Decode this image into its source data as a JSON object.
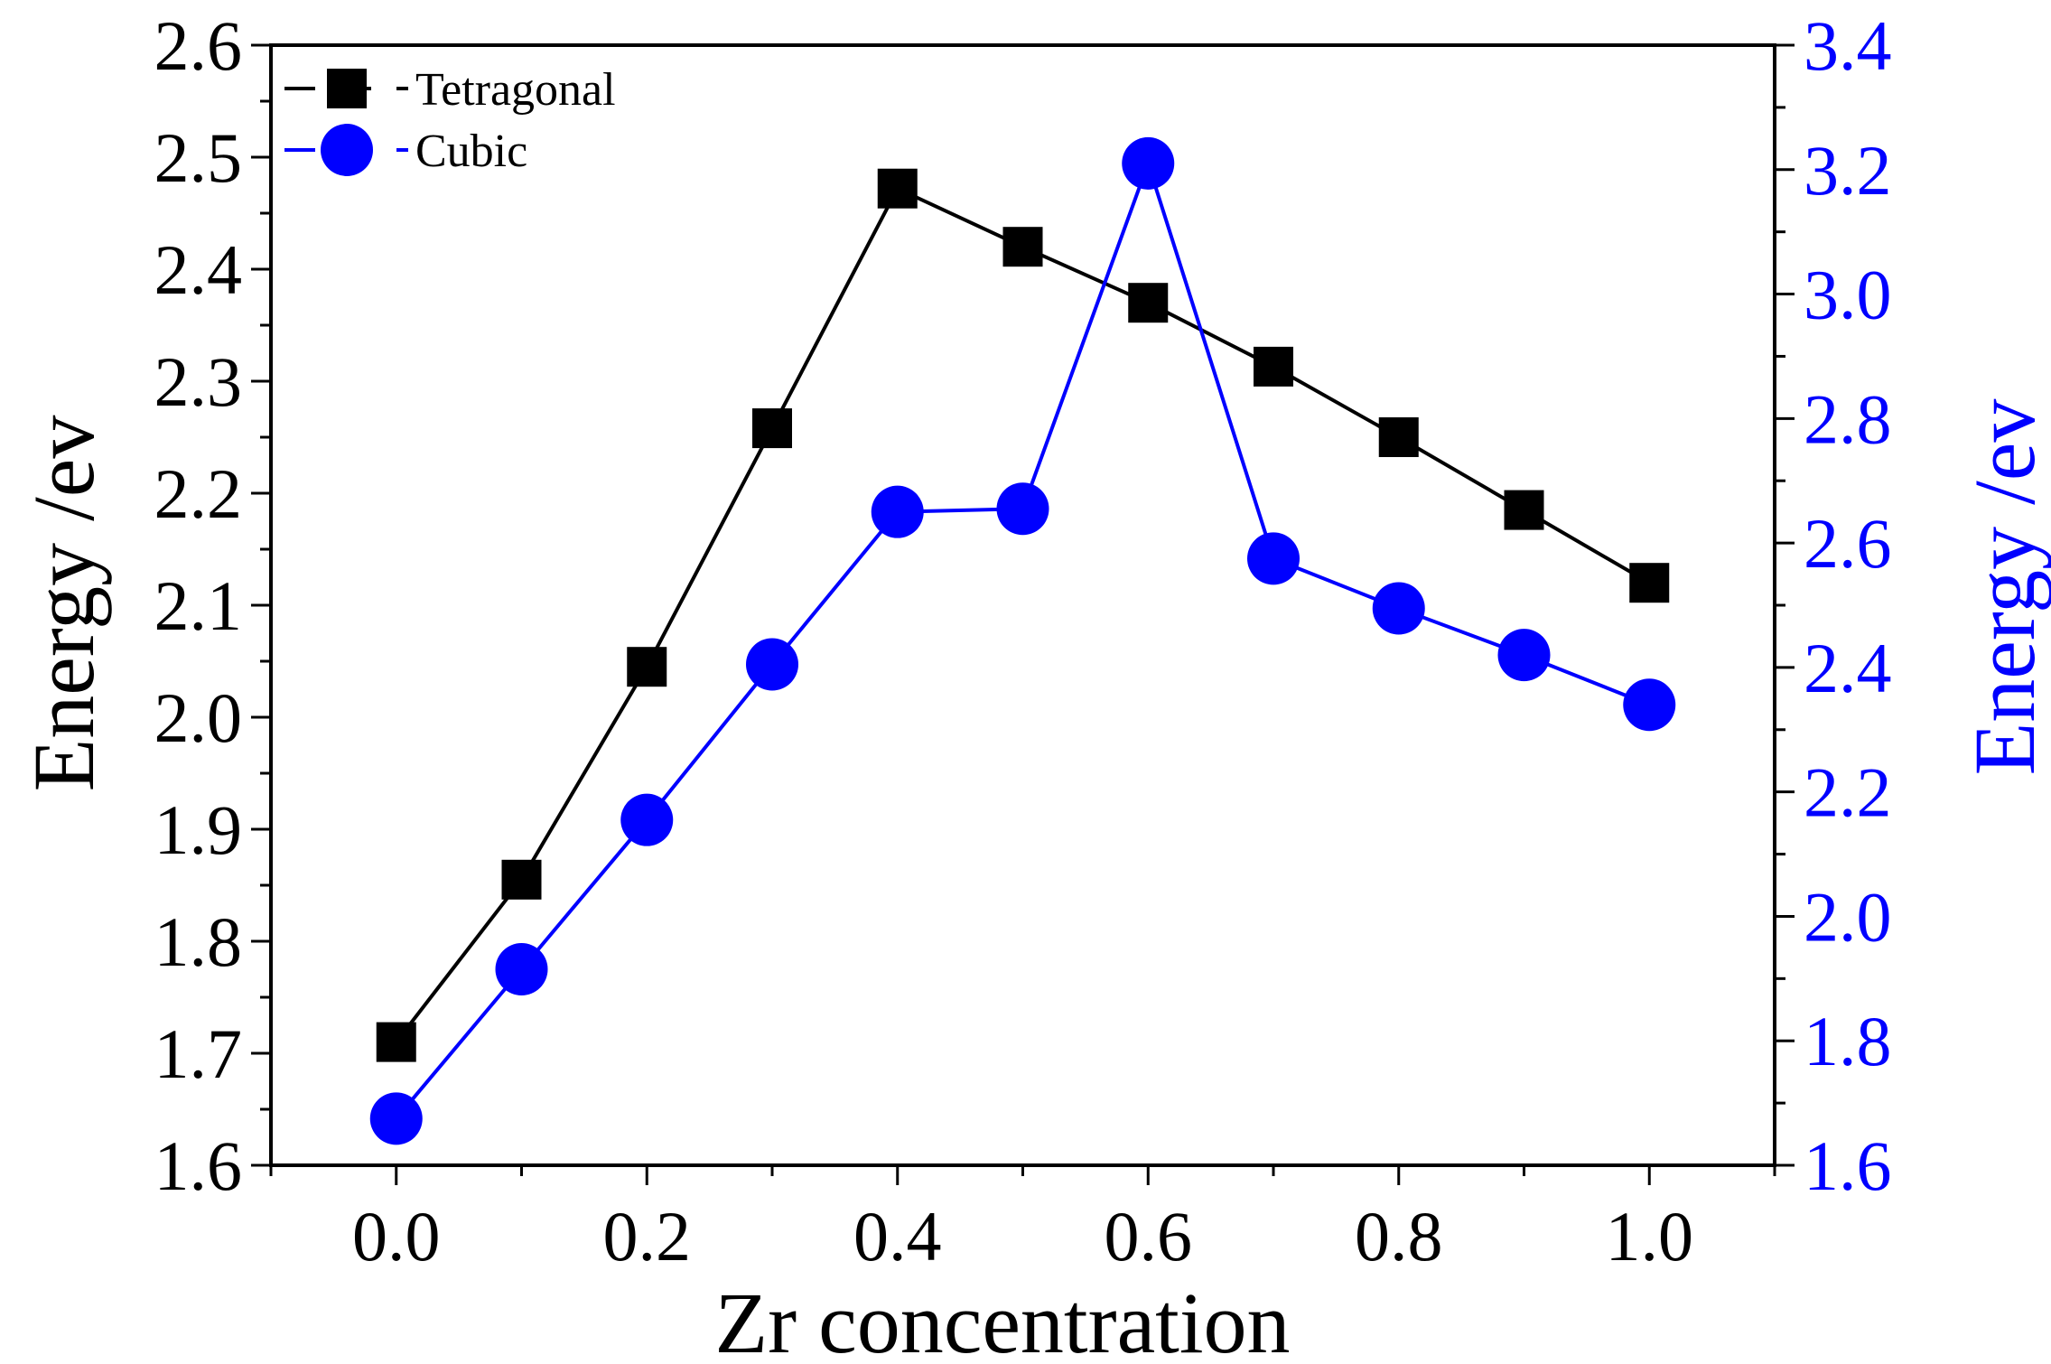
{
  "chart_data": {
    "type": "line",
    "title": "",
    "xlabel": "Zr concentration",
    "ylabel_left": "Energy /ev",
    "ylabel_right": "Energy /ev",
    "xlim": [
      -0.1,
      1.1
    ],
    "ylim_left": [
      1.6,
      2.6
    ],
    "ylim_right": [
      1.6,
      3.4
    ],
    "x_ticks": [
      "0.0",
      "0.2",
      "0.4",
      "0.6",
      "0.8",
      "1.0"
    ],
    "y_left_ticks": [
      "1.6",
      "1.7",
      "1.8",
      "1.9",
      "2.0",
      "2.1",
      "2.2",
      "2.3",
      "2.4",
      "2.5",
      "2.6"
    ],
    "y_right_ticks": [
      "1.6",
      "1.8",
      "2.0",
      "2.2",
      "2.4",
      "2.6",
      "2.8",
      "3.0",
      "3.2",
      "3.4"
    ],
    "legend_position": "top-left",
    "series": [
      {
        "name": "Tetragonal",
        "axis": "left",
        "marker": "square",
        "color": "#000000",
        "x": [
          0.0,
          0.1,
          0.2,
          0.3,
          0.4,
          0.5,
          0.6,
          0.7,
          0.8,
          0.9,
          1.0
        ],
        "values": [
          1.71,
          1.855,
          2.045,
          2.258,
          2.472,
          2.42,
          2.37,
          2.313,
          2.25,
          2.185,
          2.12
        ]
      },
      {
        "name": "Cubic",
        "axis": "right",
        "marker": "circle",
        "color": "#0000ff",
        "x": [
          0.0,
          0.1,
          0.2,
          0.3,
          0.4,
          0.5,
          0.6,
          0.7,
          0.8,
          0.9,
          1.0
        ],
        "values": [
          1.675,
          1.915,
          2.155,
          2.405,
          2.65,
          2.655,
          3.21,
          2.575,
          2.495,
          2.42,
          2.34
        ]
      }
    ]
  }
}
